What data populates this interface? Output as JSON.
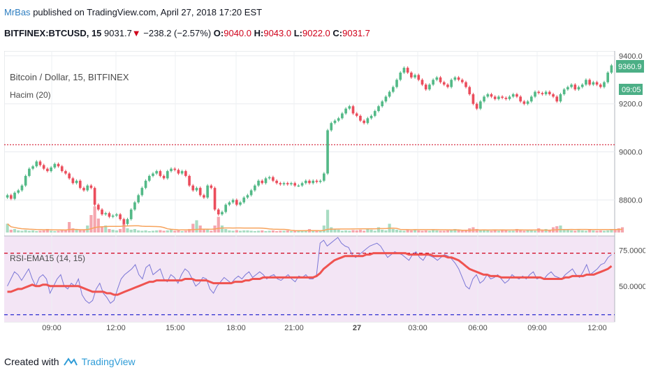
{
  "header": {
    "author": "MrBas",
    "published_text": "published on TradingView.com, April 27, 2018 17:20 EST"
  },
  "symbol_bar": {
    "symbol": "BITFINEX:BTCUSD, 15",
    "last": "9031.7",
    "change": "−238.2 (−2.57%)",
    "open_label": "O:",
    "open": "9040.0",
    "high_label": "H:",
    "high": "9043.0",
    "low_label": "L:",
    "low": "9022.0",
    "close_label": "C:",
    "close": "9031.7"
  },
  "chart_data": [
    {
      "type": "candlestick",
      "title": "Bitcoin / Dollar, 15, BITFINEX",
      "subtitle": "Hacim (20)",
      "y_ticks": [
        9400,
        9200,
        9000,
        8800
      ],
      "ylim": [
        8650,
        9420
      ],
      "price_label": "9360.9",
      "time_label": "09:05",
      "reference_line": 9030,
      "x_ticks": [
        "09:00",
        "12:00",
        "15:00",
        "18:00",
        "21:00",
        "27",
        "03:00",
        "06:00",
        "09:00",
        "12:00"
      ],
      "colors": {
        "up": "#53b987",
        "down": "#eb4d5c",
        "volume_up": "#a9dcc3",
        "volume_down": "#f5a6ae",
        "volume_ma": "#f7a35c",
        "reference": "#d0021b",
        "price_label": "#4caf86"
      },
      "closes": [
        8820,
        8805,
        8830,
        8840,
        8860,
        8900,
        8930,
        8940,
        8960,
        8945,
        8930,
        8920,
        8935,
        8950,
        8940,
        8920,
        8910,
        8890,
        8870,
        8880,
        8850,
        8840,
        8860,
        8850,
        8780,
        8760,
        8740,
        8745,
        8730,
        8735,
        8740,
        8720,
        8700,
        8720,
        8760,
        8790,
        8820,
        8850,
        8880,
        8900,
        8910,
        8920,
        8900,
        8890,
        8920,
        8930,
        8925,
        8910,
        8920,
        8900,
        8860,
        8840,
        8850,
        8820,
        8810,
        8860,
        8850,
        8760,
        8740,
        8750,
        8780,
        8790,
        8800,
        8780,
        8790,
        8810,
        8820,
        8840,
        8860,
        8880,
        8870,
        8890,
        8895,
        8880,
        8870,
        8865,
        8870,
        8865,
        8870,
        8860,
        8860,
        8870,
        8880,
        8870,
        8880,
        8875,
        8880,
        8910,
        9090,
        9120,
        9130,
        9140,
        9160,
        9180,
        9190,
        9160,
        9150,
        9130,
        9120,
        9140,
        9150,
        9170,
        9190,
        9210,
        9230,
        9250,
        9270,
        9300,
        9330,
        9350,
        9330,
        9310,
        9320,
        9300,
        9280,
        9260,
        9280,
        9300,
        9310,
        9290,
        9280,
        9270,
        9300,
        9310,
        9300,
        9290,
        9270,
        9240,
        9200,
        9180,
        9210,
        9230,
        9240,
        9230,
        9220,
        9230,
        9225,
        9220,
        9230,
        9240,
        9230,
        9210,
        9200,
        9210,
        9230,
        9250,
        9245,
        9240,
        9250,
        9240,
        9230,
        9210,
        9240,
        9260,
        9270,
        9280,
        9260,
        9270,
        9280,
        9300,
        9280,
        9290,
        9280,
        9270,
        9290,
        9330,
        9360
      ],
      "volumes": [
        25,
        8,
        10,
        6,
        5,
        7,
        5,
        6,
        4,
        5,
        6,
        10,
        5,
        4,
        5,
        7,
        6,
        30,
        12,
        10,
        8,
        9,
        20,
        50,
        75,
        40,
        15,
        20,
        10,
        8,
        6,
        10,
        25,
        12,
        8,
        10,
        6,
        5,
        6,
        4,
        5,
        6,
        7,
        5,
        6,
        8,
        5,
        6,
        4,
        5,
        10,
        25,
        35,
        20,
        10,
        8,
        5,
        20,
        45,
        20,
        10,
        6,
        5,
        7,
        5,
        6,
        6,
        5,
        4,
        5,
        6,
        4,
        5,
        6,
        4,
        5,
        5,
        6,
        4,
        5,
        5,
        6,
        5,
        10,
        6,
        5,
        5,
        20,
        65,
        15,
        10,
        8,
        5,
        6,
        5,
        7,
        6,
        8,
        5,
        10,
        8,
        5,
        15,
        8,
        6,
        25,
        10,
        8,
        6,
        5,
        7,
        6,
        8,
        6,
        5,
        6,
        5,
        8,
        6,
        5,
        5,
        6,
        8,
        10,
        6,
        5,
        8,
        12,
        15,
        10,
        6,
        8,
        6,
        5,
        7,
        5,
        6,
        6,
        5,
        5,
        10,
        6,
        5,
        8,
        6,
        5,
        12,
        6,
        10,
        8,
        15,
        18,
        20,
        10,
        8,
        6,
        5,
        7,
        6,
        5,
        8,
        6,
        5,
        6,
        5,
        6,
        8,
        10,
        12,
        15
      ]
    },
    {
      "type": "line",
      "title": "RSI-EMA15 (14, 15)",
      "y_ticks": [
        "75.0000",
        "50.0000"
      ],
      "ylim": [
        25,
        85
      ],
      "reference_lines": [
        73,
        30
      ],
      "series": [
        {
          "color": "#7b77d6",
          "values": [
            50,
            55,
            60,
            58,
            54,
            58,
            62,
            55,
            50,
            56,
            58,
            55,
            45,
            50,
            55,
            58,
            50,
            48,
            52,
            50,
            55,
            44,
            40,
            38,
            40,
            48,
            52,
            45,
            42,
            38,
            40,
            48,
            55,
            58,
            60,
            62,
            65,
            58,
            55,
            63,
            65,
            58,
            60,
            62,
            55,
            53,
            58,
            56,
            52,
            58,
            62,
            60,
            55,
            50,
            52,
            56,
            55,
            48,
            45,
            50,
            53,
            56,
            54,
            52,
            55,
            57,
            55,
            58,
            60,
            56,
            58,
            60,
            58,
            55,
            57,
            58,
            55,
            54,
            56,
            58,
            55,
            53,
            57,
            56,
            58,
            55,
            55,
            58,
            80,
            82,
            78,
            80,
            82,
            84,
            80,
            78,
            77,
            72,
            70,
            72,
            74,
            76,
            78,
            79,
            80,
            78,
            74,
            70,
            72,
            74,
            73,
            72,
            70,
            68,
            72,
            74,
            70,
            68,
            72,
            71,
            70,
            68,
            70,
            72,
            71,
            69,
            66,
            62,
            56,
            50,
            48,
            55,
            58,
            52,
            54,
            58,
            55,
            56,
            58,
            55,
            52,
            54,
            58,
            56,
            55,
            57,
            55,
            58,
            60,
            55,
            56,
            55,
            58,
            60,
            57,
            56,
            55,
            58,
            60,
            62,
            58,
            56,
            60,
            65,
            58,
            60,
            62,
            65,
            66,
            70,
            72
          ]
        },
        {
          "color": "#ef5350",
          "values": [
            46,
            46,
            47,
            48,
            48,
            49,
            50,
            51,
            50,
            50,
            51,
            51,
            50,
            50,
            50,
            50,
            50,
            50,
            50,
            50,
            50,
            49,
            48,
            47,
            46,
            46,
            46,
            46,
            45,
            45,
            44,
            44,
            45,
            46,
            47,
            48,
            49,
            50,
            51,
            52,
            53,
            53,
            54,
            54,
            54,
            54,
            54,
            54,
            54,
            54,
            55,
            55,
            55,
            54,
            54,
            54,
            54,
            53,
            52,
            52,
            52,
            52,
            52,
            52,
            53,
            53,
            53,
            54,
            54,
            55,
            55,
            55,
            56,
            56,
            56,
            56,
            56,
            56,
            56,
            56,
            56,
            56,
            56,
            56,
            56,
            56,
            56,
            57,
            59,
            62,
            64,
            66,
            68,
            69,
            70,
            71,
            71,
            71,
            71,
            71,
            71,
            72,
            72,
            73,
            73,
            73,
            73,
            73,
            73,
            73,
            73,
            73,
            73,
            72,
            72,
            72,
            72,
            72,
            72,
            72,
            71,
            71,
            71,
            71,
            70,
            70,
            69,
            68,
            66,
            64,
            62,
            61,
            60,
            59,
            58,
            58,
            57,
            57,
            57,
            56,
            56,
            56,
            56,
            56,
            56,
            56,
            56,
            56,
            56,
            56,
            56,
            55,
            55,
            55,
            55,
            55,
            55,
            56,
            56,
            57,
            57,
            57,
            57,
            58,
            58,
            58,
            59,
            60,
            61,
            62,
            64
          ]
        }
      ]
    }
  ],
  "footer": {
    "created_with": "Created with",
    "brand": "TradingView"
  }
}
